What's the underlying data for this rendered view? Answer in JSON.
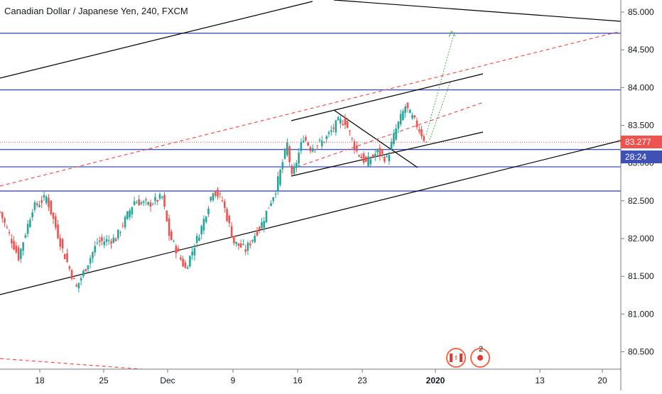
{
  "header": {
    "title": "Canadian Dollar / Japanese Yen, 240, FXCM"
  },
  "price_badges": {
    "last_price": "83.277",
    "countdown": "28:24"
  },
  "events": {
    "count": "2"
  },
  "colors": {
    "up": "#26a69a",
    "down": "#ef5350",
    "level": "#3f51b5",
    "trend": "#000000",
    "dashed": "#ef5350",
    "projection": "#4caf50",
    "last_price": "#ef5350",
    "countdown": "#3f51b5"
  },
  "chart_data": {
    "type": "candlestick",
    "y_ticks": [
      "85.000",
      "84.500",
      "84.000",
      "83.500",
      "83.000",
      "82.500",
      "82.000",
      "81.500",
      "81.000",
      "80.500"
    ],
    "ylim": [
      80.27,
      85.16
    ],
    "x_ticks": [
      "18",
      "25",
      "Dec",
      "9",
      "16",
      "23",
      "2020",
      "13",
      "20"
    ],
    "grid": false,
    "horizontal_levels": [
      84.72,
      83.97,
      83.18,
      82.95,
      82.63
    ],
    "last_price": 83.277,
    "anchors": [
      {
        "i": 0,
        "p": 82.35
      },
      {
        "i": 8,
        "p": 81.75
      },
      {
        "i": 14,
        "p": 82.4
      },
      {
        "i": 20,
        "p": 82.55
      },
      {
        "i": 27,
        "p": 81.85
      },
      {
        "i": 33,
        "p": 81.35
      },
      {
        "i": 42,
        "p": 81.95
      },
      {
        "i": 50,
        "p": 82.0
      },
      {
        "i": 58,
        "p": 82.5
      },
      {
        "i": 64,
        "p": 82.45
      },
      {
        "i": 70,
        "p": 82.55
      },
      {
        "i": 73,
        "p": 82.05
      },
      {
        "i": 80,
        "p": 81.6
      },
      {
        "i": 87,
        "p": 82.15
      },
      {
        "i": 92,
        "p": 82.65
      },
      {
        "i": 96,
        "p": 82.5
      },
      {
        "i": 101,
        "p": 81.95
      },
      {
        "i": 106,
        "p": 81.85
      },
      {
        "i": 113,
        "p": 82.2
      },
      {
        "i": 119,
        "p": 82.65
      },
      {
        "i": 124,
        "p": 83.25
      },
      {
        "i": 126,
        "p": 82.8
      },
      {
        "i": 131,
        "p": 83.35
      },
      {
        "i": 134,
        "p": 83.2
      },
      {
        "i": 140,
        "p": 83.3
      },
      {
        "i": 146,
        "p": 83.55
      },
      {
        "i": 149,
        "p": 83.55
      },
      {
        "i": 154,
        "p": 83.15
      },
      {
        "i": 158,
        "p": 83.0
      },
      {
        "i": 163,
        "p": 83.15
      },
      {
        "i": 167,
        "p": 83.05
      },
      {
        "i": 171,
        "p": 83.45
      },
      {
        "i": 175,
        "p": 83.75
      },
      {
        "i": 180,
        "p": 83.5
      },
      {
        "i": 184,
        "p": 83.27
      }
    ]
  }
}
